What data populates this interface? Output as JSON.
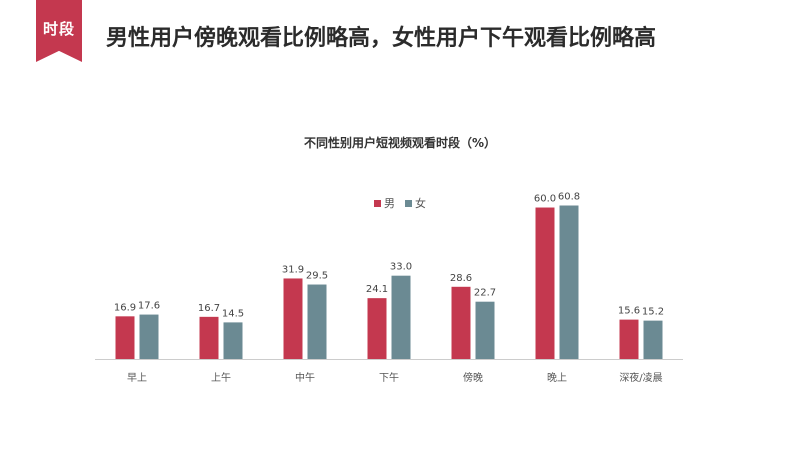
{
  "header": {
    "badge": "时段",
    "headline": "男性用户傍晚观看比例略高，女性用户下午观看比例略高"
  },
  "colors": {
    "accent": "#c4384f",
    "male": "#c4384f",
    "female": "#6b8a93",
    "axis": "#cccccc"
  },
  "chart_data": {
    "type": "bar",
    "title": "不同性别用户短视频观看时段（%）",
    "xlabel": "",
    "ylabel": "",
    "categories": [
      "早上",
      "上午",
      "中午",
      "下午",
      "傍晚",
      "晚上",
      "深夜/凌晨"
    ],
    "series": [
      {
        "name": "男",
        "values": [
          16.9,
          16.7,
          31.9,
          24.1,
          28.6,
          60.0,
          15.6
        ]
      },
      {
        "name": "女",
        "values": [
          17.6,
          14.5,
          29.5,
          33.0,
          22.7,
          60.8,
          15.2
        ]
      }
    ],
    "ylim": [
      0,
      61
    ],
    "grid": false,
    "legend": "top-center"
  }
}
